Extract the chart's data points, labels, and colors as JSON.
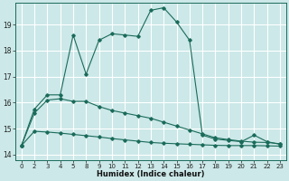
{
  "xlabel": "Humidex (Indice chaleur)",
  "background_color": "#cce8e8",
  "grid_color": "#ffffff",
  "line_color": "#1a6b5a",
  "x_labels": [
    "0",
    "2",
    "3",
    "4",
    "5",
    "8",
    "9",
    "10",
    "11",
    "12",
    "13",
    "14",
    "15",
    "16",
    "17",
    "18",
    "19",
    "20",
    "21",
    "22",
    "23"
  ],
  "ylim": [
    13.8,
    19.85
  ],
  "yticks": [
    14,
    15,
    16,
    17,
    18,
    19
  ],
  "series": {
    "max": {
      "y": [
        14.35,
        15.75,
        16.3,
        16.3,
        18.6,
        17.1,
        18.4,
        18.65,
        18.6,
        18.55,
        19.55,
        19.65,
        19.1,
        18.4,
        14.75,
        14.6,
        14.55,
        14.5,
        14.75,
        14.5,
        14.4
      ]
    },
    "mean": {
      "y": [
        14.35,
        15.6,
        16.1,
        16.15,
        16.05,
        16.05,
        15.85,
        15.7,
        15.6,
        15.5,
        15.4,
        15.25,
        15.1,
        14.95,
        14.8,
        14.65,
        14.58,
        14.52,
        14.48,
        14.47,
        14.42
      ]
    },
    "min": {
      "y": [
        14.35,
        14.9,
        14.87,
        14.83,
        14.78,
        14.73,
        14.68,
        14.62,
        14.57,
        14.52,
        14.47,
        14.44,
        14.42,
        14.4,
        14.38,
        14.36,
        14.35,
        14.35,
        14.35,
        14.34,
        14.33
      ]
    }
  }
}
